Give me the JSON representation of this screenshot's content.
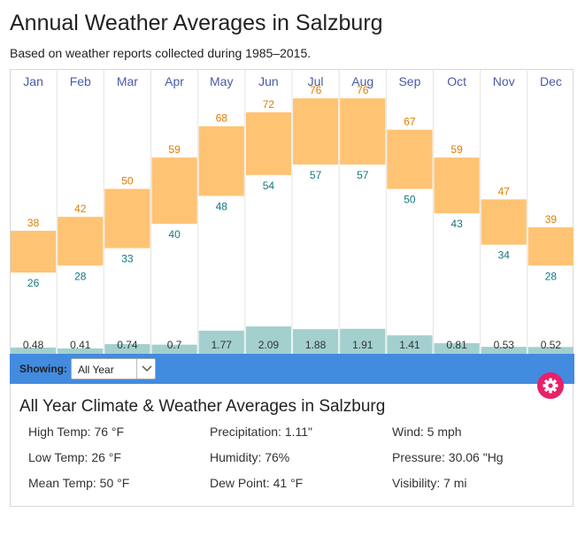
{
  "page": {
    "title": "Annual Weather Averages in Salzburg",
    "subtitle": "Based on weather reports collected during 1985–2015."
  },
  "chart_data": {
    "type": "bar",
    "categories": [
      "Jan",
      "Feb",
      "Mar",
      "Apr",
      "May",
      "Jun",
      "Jul",
      "Aug",
      "Sep",
      "Oct",
      "Nov",
      "Dec"
    ],
    "series": [
      {
        "name": "",
        "role": "high_temp_f",
        "values": [
          38,
          42,
          50,
          59,
          68,
          72,
          76,
          76,
          67,
          59,
          47,
          39
        ]
      },
      {
        "name": "",
        "role": "low_temp_f",
        "values": [
          26,
          28,
          33,
          40,
          48,
          54,
          57,
          57,
          50,
          43,
          34,
          28
        ]
      },
      {
        "name": "",
        "role": "precipitation_in",
        "values": [
          "0.48",
          "0.41",
          "0.74",
          "0.7",
          "1.77",
          "2.09",
          "1.88",
          "1.91",
          "1.41",
          "0.81",
          "0.53",
          "0.52"
        ]
      }
    ],
    "colors": {
      "temp_bar": "#ffc374",
      "high_label": "#e07b00",
      "low_label": "#11777f",
      "precip_bar": "#a3cfcf",
      "month_label": "#4a5aa8"
    }
  },
  "controls": {
    "showing_label": "Showing:",
    "period_selected": "All Year"
  },
  "summary": {
    "title": "All Year Climate & Weather Averages in Salzburg",
    "high_temp": "High Temp: 76 °F",
    "low_temp": "Low Temp: 26 °F",
    "mean_temp": "Mean Temp: 50 °F",
    "precipitation": "Precipitation: 1.11\"",
    "humidity": "Humidity: 76%",
    "dew_point": "Dew Point: 41 °F",
    "wind": "Wind: 5 mph",
    "pressure": "Pressure: 30.06 \"Hg",
    "visibility": "Visibility: 7 mi"
  },
  "icons": {
    "settings": "gear-icon",
    "dropdown": "chevron-down-icon"
  }
}
